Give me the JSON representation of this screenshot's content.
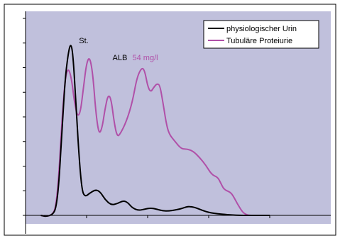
{
  "chart_data": {
    "type": "line",
    "title": "",
    "xlabel": "",
    "ylabel": "",
    "xlim": [
      0,
      100
    ],
    "ylim": [
      0,
      8
    ],
    "grid": false,
    "legend": "top-right",
    "background": "#c0c0dc",
    "series": [
      {
        "name": "physiologischer Urin",
        "color": "#000000",
        "points": [
          [
            5,
            0
          ],
          [
            7,
            -0.05
          ],
          [
            9,
            0.05
          ],
          [
            10,
            0.3
          ],
          [
            11,
            1.4
          ],
          [
            12,
            3.6
          ],
          [
            13,
            5.6
          ],
          [
            14,
            6.6
          ],
          [
            14.8,
            7.0
          ],
          [
            15.5,
            6.6
          ],
          [
            16.5,
            4.6
          ],
          [
            17.5,
            2.4
          ],
          [
            18.5,
            1.0
          ],
          [
            19.5,
            0.75
          ],
          [
            21,
            0.9
          ],
          [
            23,
            1.05
          ],
          [
            24.5,
            0.95
          ],
          [
            26,
            0.65
          ],
          [
            28,
            0.42
          ],
          [
            30,
            0.47
          ],
          [
            32,
            0.6
          ],
          [
            33.5,
            0.52
          ],
          [
            35,
            0.3
          ],
          [
            37,
            0.2
          ],
          [
            39,
            0.25
          ],
          [
            41,
            0.3
          ],
          [
            43,
            0.25
          ],
          [
            45,
            0.18
          ],
          [
            47,
            0.18
          ],
          [
            49,
            0.22
          ],
          [
            51,
            0.27
          ],
          [
            53,
            0.36
          ],
          [
            54.5,
            0.35
          ],
          [
            56,
            0.3
          ],
          [
            58,
            0.2
          ],
          [
            60,
            0.12
          ],
          [
            63,
            0.06
          ],
          [
            66,
            0.03
          ],
          [
            70,
            0.0
          ],
          [
            75,
            0.0
          ],
          [
            80,
            0.0
          ]
        ]
      },
      {
        "name": "Tubuläre Proteiurie",
        "color": "#b050a8",
        "points": [
          [
            5,
            0
          ],
          [
            7,
            -0.05
          ],
          [
            9,
            0.05
          ],
          [
            10,
            0.4
          ],
          [
            11,
            1.8
          ],
          [
            12,
            4.0
          ],
          [
            13,
            5.6
          ],
          [
            14,
            6.0
          ],
          [
            15,
            5.6
          ],
          [
            16,
            4.6
          ],
          [
            17,
            4.0
          ],
          [
            18,
            4.2
          ],
          [
            19,
            5.2
          ],
          [
            20,
            6.2
          ],
          [
            21,
            6.45
          ],
          [
            22,
            5.8
          ],
          [
            23,
            4.2
          ],
          [
            24,
            3.3
          ],
          [
            25,
            3.5
          ],
          [
            26,
            4.3
          ],
          [
            27,
            4.9
          ],
          [
            28,
            4.75
          ],
          [
            29,
            3.8
          ],
          [
            30,
            3.2
          ],
          [
            31,
            3.3
          ],
          [
            33,
            3.8
          ],
          [
            35,
            4.6
          ],
          [
            36.5,
            5.6
          ],
          [
            38,
            6.0
          ],
          [
            39,
            5.9
          ],
          [
            40,
            5.25
          ],
          [
            41,
            5.0
          ],
          [
            42,
            5.2
          ],
          [
            43,
            5.35
          ],
          [
            44,
            5.3
          ],
          [
            45,
            4.6
          ],
          [
            46,
            3.8
          ],
          [
            47,
            3.3
          ],
          [
            49,
            3.0
          ],
          [
            51,
            2.7
          ],
          [
            53,
            2.7
          ],
          [
            55,
            2.6
          ],
          [
            57,
            2.35
          ],
          [
            59,
            2.05
          ],
          [
            61,
            1.65
          ],
          [
            63,
            1.55
          ],
          [
            64,
            1.3
          ],
          [
            65,
            1.05
          ],
          [
            67,
            0.95
          ],
          [
            68,
            0.8
          ],
          [
            69.5,
            0.45
          ],
          [
            71,
            0.15
          ],
          [
            72,
            0.05
          ],
          [
            73,
            0.0
          ],
          [
            75,
            0.0
          ]
        ]
      }
    ],
    "annotations": [
      {
        "text": "St.",
        "x": 17.5,
        "y": 7.0,
        "color": "#000000"
      },
      {
        "text": "ALB",
        "x": 28.5,
        "y": 6.3,
        "color": "#000000"
      },
      {
        "text": "54 mg/l",
        "x": 35,
        "y": 6.3,
        "color": "#b050a8"
      }
    ],
    "y_ticks": [
      0,
      1,
      2,
      3,
      4,
      5,
      6,
      7,
      8
    ],
    "x_ticks": [
      0,
      20,
      40,
      60,
      80
    ]
  }
}
